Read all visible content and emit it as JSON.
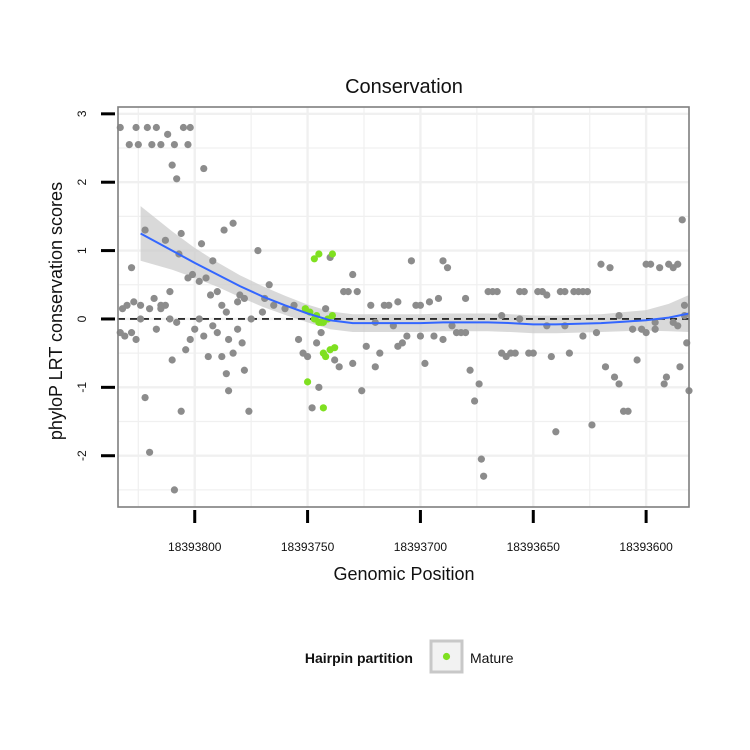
{
  "chart_data": {
    "type": "scatter",
    "title": "Conservation",
    "xlabel": "Genomic Position",
    "ylabel": "phyloP LRT conservation scores",
    "x_reversed": true,
    "xlim": [
      18393834,
      18393581
    ],
    "ylim": [
      -2.75,
      3.1
    ],
    "x_ticks": [
      18393800,
      18393750,
      18393700,
      18393650,
      18393600
    ],
    "x_tick_labels": [
      "18393800",
      "18393750",
      "18393700",
      "18393650",
      "18393600"
    ],
    "y_ticks": [
      -2,
      -1,
      0,
      1,
      2,
      3
    ],
    "y_tick_labels": [
      "-2",
      "-1",
      "0",
      "1",
      "2",
      "3"
    ],
    "reference_line": {
      "y": 0,
      "style": "dashed"
    },
    "colors": {
      "other": "#8c8c8c",
      "mature": "#7fe020",
      "smooth": "#3366ff",
      "band": "#cccccc",
      "panel_border": "#7f7f7f",
      "grid": "#f0f0f0"
    },
    "legend": {
      "title": "Hairpin partition",
      "entries": [
        {
          "label": "Mature",
          "color": "#7fe020"
        }
      ],
      "position": "bottom"
    },
    "series": [
      {
        "name": "Other",
        "points": [
          [
            18393833,
            2.8
          ],
          [
            18393829,
            2.55
          ],
          [
            18393826,
            2.8
          ],
          [
            18393825,
            2.55
          ],
          [
            18393821,
            2.8
          ],
          [
            18393819,
            2.55
          ],
          [
            18393817,
            2.8
          ],
          [
            18393815,
            2.55
          ],
          [
            18393812,
            2.7
          ],
          [
            18393809,
            2.55
          ],
          [
            18393805,
            2.8
          ],
          [
            18393802,
            2.8
          ],
          [
            18393803,
            2.55
          ],
          [
            18393810,
            2.25
          ],
          [
            18393808,
            2.05
          ],
          [
            18393796,
            2.2
          ],
          [
            18393832,
            0.15
          ],
          [
            18393830,
            0.2
          ],
          [
            18393828,
            0.75
          ],
          [
            18393827,
            0.25
          ],
          [
            18393824,
            0.2
          ],
          [
            18393822,
            1.3
          ],
          [
            18393820,
            0.15
          ],
          [
            18393818,
            0.3
          ],
          [
            18393815,
            0.2
          ],
          [
            18393813,
            1.15
          ],
          [
            18393811,
            0.4
          ],
          [
            18393810,
            -0.6
          ],
          [
            18393807,
            0.95
          ],
          [
            18393806,
            1.25
          ],
          [
            18393803,
            0.6
          ],
          [
            18393801,
            0.65
          ],
          [
            18393798,
            0.55
          ],
          [
            18393797,
            1.1
          ],
          [
            18393795,
            0.6
          ],
          [
            18393793,
            0.35
          ],
          [
            18393792,
            0.85
          ],
          [
            18393790,
            0.4
          ],
          [
            18393788,
            0.2
          ],
          [
            18393787,
            1.3
          ],
          [
            18393786,
            0.1
          ],
          [
            18393785,
            -0.3
          ],
          [
            18393783,
            1.4
          ],
          [
            18393781,
            0.25
          ],
          [
            18393780,
            0.35
          ],
          [
            18393778,
            0.3
          ],
          [
            18393833,
            -0.2
          ],
          [
            18393831,
            -0.25
          ],
          [
            18393828,
            -0.2
          ],
          [
            18393826,
            -0.3
          ],
          [
            18393824,
            0.0
          ],
          [
            18393822,
            -1.15
          ],
          [
            18393820,
            -1.95
          ],
          [
            18393817,
            -0.15
          ],
          [
            18393815,
            0.15
          ],
          [
            18393813,
            0.2
          ],
          [
            18393811,
            0.0
          ],
          [
            18393808,
            -0.05
          ],
          [
            18393806,
            -1.35
          ],
          [
            18393804,
            -0.45
          ],
          [
            18393802,
            -0.3
          ],
          [
            18393800,
            -0.15
          ],
          [
            18393798,
            0.0
          ],
          [
            18393796,
            -0.25
          ],
          [
            18393794,
            -0.55
          ],
          [
            18393792,
            -0.1
          ],
          [
            18393790,
            -0.2
          ],
          [
            18393788,
            -0.55
          ],
          [
            18393786,
            -0.8
          ],
          [
            18393785,
            -1.05
          ],
          [
            18393783,
            -0.5
          ],
          [
            18393781,
            -0.15
          ],
          [
            18393779,
            -0.35
          ],
          [
            18393778,
            -0.75
          ],
          [
            18393776,
            -1.35
          ],
          [
            18393775,
            0.0
          ],
          [
            18393809,
            -2.5
          ],
          [
            18393772,
            1.0
          ],
          [
            18393770,
            0.1
          ],
          [
            18393769,
            0.3
          ],
          [
            18393767,
            0.5
          ],
          [
            18393765,
            0.2
          ],
          [
            18393760,
            0.15
          ],
          [
            18393756,
            0.2
          ],
          [
            18393754,
            -0.3
          ],
          [
            18393752,
            -0.5
          ],
          [
            18393750,
            -0.55
          ],
          [
            18393748,
            -1.3
          ],
          [
            18393746,
            -0.35
          ],
          [
            18393744,
            -0.2
          ],
          [
            18393742,
            0.15
          ],
          [
            18393740,
            0.9
          ],
          [
            18393738,
            -0.6
          ],
          [
            18393736,
            -0.7
          ],
          [
            18393734,
            0.4
          ],
          [
            18393732,
            0.4
          ],
          [
            18393730,
            0.65
          ],
          [
            18393728,
            0.4
          ],
          [
            18393726,
            -1.05
          ],
          [
            18393724,
            -0.4
          ],
          [
            18393722,
            0.2
          ],
          [
            18393720,
            -0.05
          ],
          [
            18393718,
            -0.5
          ],
          [
            18393716,
            0.2
          ],
          [
            18393714,
            0.2
          ],
          [
            18393712,
            -0.1
          ],
          [
            18393710,
            0.25
          ],
          [
            18393708,
            -0.35
          ],
          [
            18393706,
            -0.25
          ],
          [
            18393704,
            0.85
          ],
          [
            18393702,
            0.2
          ],
          [
            18393700,
            0.2
          ],
          [
            18393698,
            -0.65
          ],
          [
            18393696,
            0.25
          ],
          [
            18393694,
            -0.25
          ],
          [
            18393692,
            0.3
          ],
          [
            18393690,
            0.85
          ],
          [
            18393688,
            0.75
          ],
          [
            18393686,
            -0.1
          ],
          [
            18393684,
            -0.2
          ],
          [
            18393682,
            -0.2
          ],
          [
            18393680,
            0.3
          ],
          [
            18393678,
            -0.75
          ],
          [
            18393676,
            -1.2
          ],
          [
            18393674,
            -0.95
          ],
          [
            18393673,
            -2.05
          ],
          [
            18393672,
            -2.3
          ],
          [
            18393670,
            0.4
          ],
          [
            18393668,
            0.4
          ],
          [
            18393666,
            0.4
          ],
          [
            18393664,
            -0.5
          ],
          [
            18393662,
            -0.55
          ],
          [
            18393660,
            -0.5
          ],
          [
            18393658,
            -0.5
          ],
          [
            18393656,
            0.4
          ],
          [
            18393654,
            0.4
          ],
          [
            18393652,
            -0.5
          ],
          [
            18393650,
            -0.5
          ],
          [
            18393648,
            0.4
          ],
          [
            18393646,
            0.4
          ],
          [
            18393644,
            0.35
          ],
          [
            18393642,
            -0.55
          ],
          [
            18393640,
            -1.65
          ],
          [
            18393638,
            0.4
          ],
          [
            18393636,
            0.4
          ],
          [
            18393634,
            -0.5
          ],
          [
            18393632,
            0.4
          ],
          [
            18393630,
            0.4
          ],
          [
            18393628,
            0.4
          ],
          [
            18393626,
            0.4
          ],
          [
            18393624,
            -1.55
          ],
          [
            18393622,
            -0.2
          ],
          [
            18393620,
            0.8
          ],
          [
            18393618,
            -0.7
          ],
          [
            18393616,
            0.75
          ],
          [
            18393614,
            -0.85
          ],
          [
            18393612,
            -0.95
          ],
          [
            18393610,
            -1.35
          ],
          [
            18393608,
            -1.35
          ],
          [
            18393606,
            -0.15
          ],
          [
            18393604,
            -0.6
          ],
          [
            18393602,
            -0.15
          ],
          [
            18393600,
            0.8
          ],
          [
            18393598,
            0.8
          ],
          [
            18393596,
            -0.15
          ],
          [
            18393594,
            0.75
          ],
          [
            18393592,
            -0.95
          ],
          [
            18393590,
            0.8
          ],
          [
            18393588,
            0.75
          ],
          [
            18393586,
            0.8
          ],
          [
            18393585,
            -0.7
          ],
          [
            18393584,
            1.45
          ],
          [
            18393583,
            0.2
          ],
          [
            18393582,
            -0.35
          ],
          [
            18393581,
            -1.05
          ],
          [
            18393591,
            -0.85
          ],
          [
            18393588,
            -0.05
          ],
          [
            18393586,
            -0.1
          ],
          [
            18393583,
            0.05
          ],
          [
            18393600,
            -0.2
          ],
          [
            18393612,
            0.05
          ],
          [
            18393596,
            -0.05
          ],
          [
            18393628,
            -0.25
          ],
          [
            18393636,
            -0.1
          ],
          [
            18393644,
            -0.1
          ],
          [
            18393656,
            0.0
          ],
          [
            18393664,
            0.05
          ],
          [
            18393680,
            -0.2
          ],
          [
            18393690,
            -0.3
          ],
          [
            18393700,
            -0.25
          ],
          [
            18393710,
            -0.4
          ],
          [
            18393720,
            -0.7
          ],
          [
            18393730,
            -0.65
          ],
          [
            18393745,
            -1.0
          ]
        ]
      },
      {
        "name": "Mature",
        "points": [
          [
            18393751,
            0.15
          ],
          [
            18393749,
            0.1
          ],
          [
            18393747,
            0.0
          ],
          [
            18393746,
            0.05
          ],
          [
            18393745,
            -0.05
          ],
          [
            18393744,
            -0.05
          ],
          [
            18393743,
            -0.05
          ],
          [
            18393741,
            0.0
          ],
          [
            18393739,
            0.05
          ],
          [
            18393747,
            0.88
          ],
          [
            18393745,
            0.95
          ],
          [
            18393739,
            0.95
          ],
          [
            18393743,
            -0.5
          ],
          [
            18393742,
            -0.55
          ],
          [
            18393740,
            -0.45
          ],
          [
            18393738,
            -0.42
          ],
          [
            18393750,
            -0.92
          ],
          [
            18393743,
            -1.3
          ]
        ]
      }
    ],
    "smooth": {
      "method": "loess",
      "x": [
        18393824,
        18393810,
        18393800,
        18393790,
        18393780,
        18393770,
        18393760,
        18393750,
        18393740,
        18393730,
        18393720,
        18393710,
        18393700,
        18393690,
        18393680,
        18393670,
        18393660,
        18393650,
        18393640,
        18393630,
        18393620,
        18393610,
        18393600,
        18393590,
        18393581
      ],
      "y": [
        1.25,
        1.0,
        0.82,
        0.65,
        0.48,
        0.33,
        0.2,
        0.08,
        -0.02,
        -0.06,
        -0.06,
        -0.06,
        -0.06,
        -0.05,
        -0.05,
        -0.05,
        -0.06,
        -0.08,
        -0.08,
        -0.07,
        -0.06,
        -0.04,
        -0.02,
        0.02,
        0.08
      ],
      "band_half_width": [
        0.4,
        0.28,
        0.22,
        0.18,
        0.16,
        0.15,
        0.14,
        0.13,
        0.13,
        0.13,
        0.13,
        0.13,
        0.13,
        0.13,
        0.13,
        0.13,
        0.13,
        0.13,
        0.13,
        0.13,
        0.13,
        0.14,
        0.15,
        0.2,
        0.27
      ]
    }
  }
}
